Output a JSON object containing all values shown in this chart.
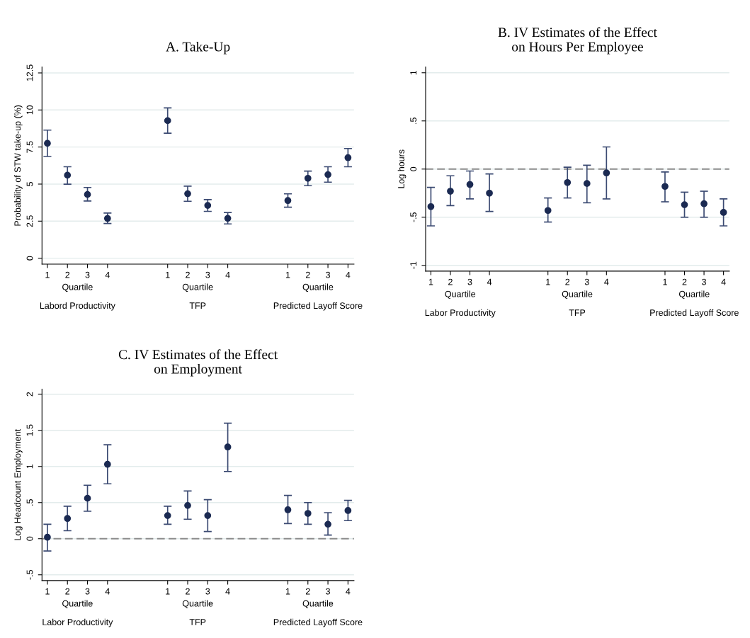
{
  "chart_data": [
    {
      "type": "scatter",
      "title": "A. Take-Up",
      "ylabel": "Probability of STW take-up (%)",
      "categories": [
        "1",
        "2",
        "3",
        "4",
        null,
        null,
        "1",
        "2",
        "3",
        "4",
        null,
        null,
        "1",
        "2",
        "3",
        "4"
      ],
      "ylim": [
        -0.4,
        12.9
      ],
      "yticks": [
        0,
        2.5,
        5,
        7.5,
        10,
        12.5
      ],
      "marker": "circle",
      "series": [
        {
          "color": "#1b2a52",
          "values": [
            7.75,
            5.6,
            4.3,
            2.68,
            null,
            null,
            9.28,
            4.35,
            3.56,
            2.69,
            null,
            null,
            3.89,
            5.39,
            5.64,
            6.78
          ],
          "errors": [
            [
              6.86,
              8.64
            ],
            [
              4.99,
              6.17
            ],
            [
              3.86,
              4.77
            ],
            [
              2.34,
              3.05
            ],
            null,
            null,
            [
              8.43,
              10.14
            ],
            [
              3.84,
              4.86
            ],
            [
              3.16,
              3.95
            ],
            [
              2.31,
              3.08
            ],
            null,
            null,
            [
              3.44,
              4.34
            ],
            [
              4.89,
              5.88
            ],
            [
              5.13,
              6.17
            ],
            [
              6.17,
              7.4
            ]
          ]
        }
      ],
      "grid": "y",
      "annotations": [
        "Quartile",
        "Labord Productivity",
        "Quartile",
        "TFP",
        "Quartile",
        "Predicted Layoff Score"
      ]
    },
    {
      "type": "scatter",
      "title": "B. IV Estimates of the Effect\non Hours Per Employee",
      "ylabel": "Log hours",
      "categories": [
        "1",
        "2",
        "3",
        "4",
        null,
        null,
        "1",
        "2",
        "3",
        "4",
        null,
        null,
        "1",
        "2",
        "3",
        "4"
      ],
      "ylim": [
        -1.06,
        1.06
      ],
      "yticks": [
        {
          "value": -1,
          "label": "-1"
        },
        {
          "value": -0.5,
          "label": "-.5"
        },
        0,
        {
          "value": 0.5,
          "label": ".5"
        },
        1
      ],
      "marker": "circle",
      "series": [
        {
          "color": "#1b2a52",
          "values": [
            -0.39,
            -0.23,
            -0.16,
            -0.25,
            null,
            null,
            -0.43,
            -0.14,
            -0.15,
            -0.04,
            null,
            null,
            -0.18,
            -0.37,
            -0.36,
            -0.45
          ],
          "errors": [
            [
              -0.59,
              -0.19
            ],
            [
              -0.38,
              -0.07
            ],
            [
              -0.31,
              -0.02
            ],
            [
              -0.44,
              -0.05
            ],
            null,
            null,
            [
              -0.55,
              -0.3
            ],
            [
              -0.3,
              0.02
            ],
            [
              -0.35,
              0.04
            ],
            [
              -0.31,
              0.23
            ],
            null,
            null,
            [
              -0.34,
              -0.03
            ],
            [
              -0.5,
              -0.24
            ],
            [
              -0.5,
              -0.23
            ],
            [
              -0.59,
              -0.31
            ]
          ]
        }
      ],
      "grid": "y",
      "ref_lines": [
        {
          "axis": "y",
          "value": 0,
          "color": "#8c8c8c",
          "line_style": "dashed"
        }
      ],
      "annotations": [
        "Quartile",
        "Labor Productivity",
        "Quartile",
        "TFP",
        "Quartile",
        "Predicted Layoff Score"
      ]
    },
    {
      "type": "scatter",
      "title": "C. IV Estimates of the Effect\non Employment",
      "ylabel": "Log Headcount Employment",
      "categories": [
        "1",
        "2",
        "3",
        "4",
        null,
        null,
        "1",
        "2",
        "3",
        "4",
        null,
        null,
        "1",
        "2",
        "3",
        "4"
      ],
      "ylim": [
        -0.58,
        2.07
      ],
      "yticks": [
        {
          "value": -0.5,
          "label": "-.5"
        },
        0,
        {
          "value": 0.5,
          "label": ".5"
        },
        1,
        1.5,
        2
      ],
      "marker": "circle",
      "series": [
        {
          "color": "#1b2a52",
          "values": [
            0.02,
            0.28,
            0.56,
            1.03,
            null,
            null,
            0.32,
            0.46,
            0.32,
            1.27,
            null,
            null,
            0.4,
            0.35,
            0.2,
            0.39
          ],
          "errors": [
            [
              -0.17,
              0.2
            ],
            [
              0.11,
              0.45
            ],
            [
              0.38,
              0.74
            ],
            [
              0.76,
              1.3
            ],
            null,
            null,
            [
              0.2,
              0.45
            ],
            [
              0.27,
              0.66
            ],
            [
              0.1,
              0.54
            ],
            [
              0.93,
              1.6
            ],
            null,
            null,
            [
              0.21,
              0.6
            ],
            [
              0.2,
              0.5
            ],
            [
              0.05,
              0.36
            ],
            [
              0.25,
              0.53
            ]
          ]
        }
      ],
      "grid": "y",
      "ref_lines": [
        {
          "axis": "y",
          "value": 0,
          "color": "#8c8c8c",
          "line_style": "dashed"
        }
      ],
      "annotations": [
        "Quartile",
        "Labor Productivity",
        "Quartile",
        "TFP",
        "Quartile",
        "Predicted Layoff Score"
      ]
    }
  ]
}
